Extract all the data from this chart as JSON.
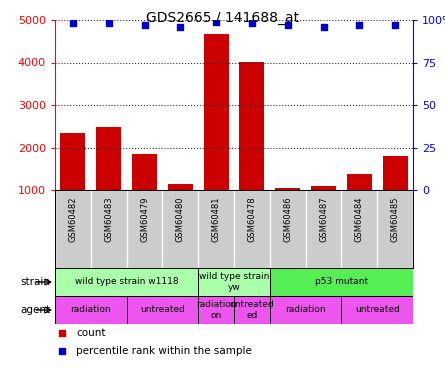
{
  "title": "GDS2665 / 141688_at",
  "samples": [
    "GSM60482",
    "GSM60483",
    "GSM60479",
    "GSM60480",
    "GSM60481",
    "GSM60478",
    "GSM60486",
    "GSM60487",
    "GSM60484",
    "GSM60485"
  ],
  "counts": [
    2350,
    2480,
    1850,
    1150,
    4680,
    4020,
    1050,
    1100,
    1380,
    1800
  ],
  "percentiles": [
    98,
    98,
    97,
    96,
    99,
    98,
    97,
    96,
    97,
    97
  ],
  "bar_color": "#cc0000",
  "dot_color": "#0000cc",
  "ylim_left": [
    1000,
    5000
  ],
  "ylim_right": [
    0,
    100
  ],
  "yticks_left": [
    1000,
    2000,
    3000,
    4000,
    5000
  ],
  "yticks_right": [
    0,
    25,
    50,
    75,
    100
  ],
  "strain_groups": [
    {
      "label": "wild type strain w1118",
      "start": 0,
      "end": 4,
      "color": "#aaffaa"
    },
    {
      "label": "wild type strain\nyw",
      "start": 4,
      "end": 6,
      "color": "#aaffaa"
    },
    {
      "label": "p53 mutant",
      "start": 6,
      "end": 10,
      "color": "#55ee55"
    }
  ],
  "agent_groups": [
    {
      "label": "radiation",
      "start": 0,
      "end": 2
    },
    {
      "label": "untreated",
      "start": 2,
      "end": 4
    },
    {
      "label": "radiation\non",
      "start": 4,
      "end": 5
    },
    {
      "label": "untreated\ned",
      "start": 5,
      "end": 6
    },
    {
      "label": "radiation",
      "start": 6,
      "end": 8
    },
    {
      "label": "untreated",
      "start": 8,
      "end": 10
    }
  ],
  "agent_color": "#ee55ee",
  "sample_bg_color": "#cccccc",
  "legend_count_color": "#cc0000",
  "legend_pct_color": "#0000cc"
}
